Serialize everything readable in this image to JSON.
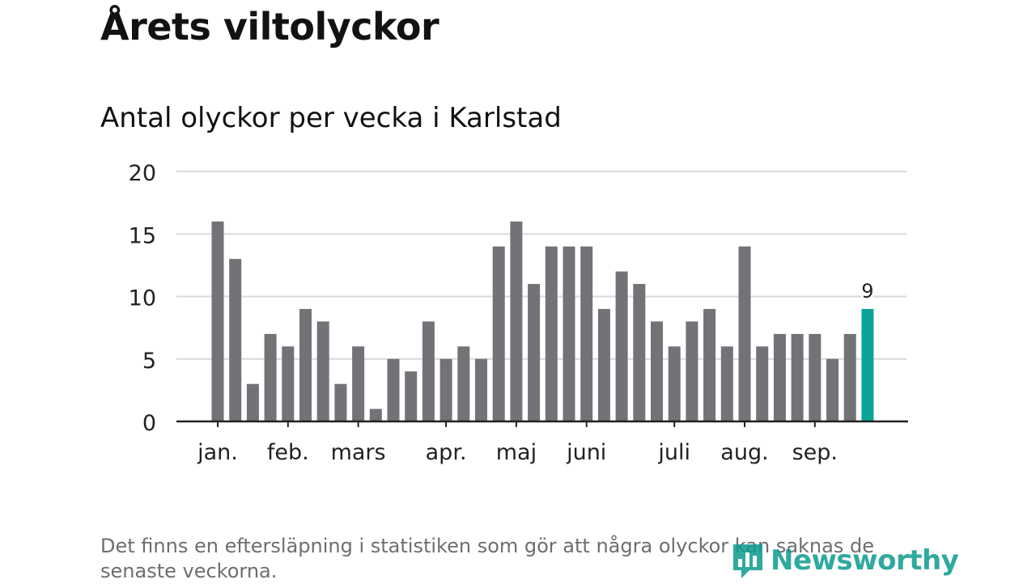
{
  "header": {
    "title": "Årets viltolyckor",
    "subtitle": "Antal olyckor per vecka i Karlstad"
  },
  "chart_data": {
    "type": "bar",
    "title": "Årets viltolyckor",
    "subtitle": "Antal olyckor per vecka i Karlstad",
    "xlabel": "",
    "ylabel": "",
    "ylim": [
      0,
      20
    ],
    "y_ticks": [
      0,
      5,
      10,
      15,
      20
    ],
    "grid": true,
    "values": [
      16,
      13,
      3,
      7,
      6,
      9,
      8,
      3,
      6,
      1,
      5,
      4,
      8,
      5,
      6,
      5,
      14,
      16,
      11,
      14,
      14,
      14,
      9,
      12,
      11,
      8,
      6,
      8,
      9,
      6,
      14,
      6,
      7,
      7,
      7,
      5,
      7,
      9
    ],
    "month_labels": [
      {
        "label": "jan.",
        "week_index": 0
      },
      {
        "label": "feb.",
        "week_index": 4
      },
      {
        "label": "mars",
        "week_index": 8
      },
      {
        "label": "apr.",
        "week_index": 13
      },
      {
        "label": "maj",
        "week_index": 17
      },
      {
        "label": "juni",
        "week_index": 21
      },
      {
        "label": "juli",
        "week_index": 26
      },
      {
        "label": "aug.",
        "week_index": 30
      },
      {
        "label": "sep.",
        "week_index": 34
      }
    ],
    "highlight_last": true,
    "last_value_label": "9",
    "colors": {
      "bar": "#737277",
      "highlight": "#0ca49a",
      "grid": "#d9d9d9",
      "axis": "#222222",
      "text": "#222222"
    }
  },
  "footer": {
    "note": "Det finns en eftersläpning i statistiken som gör att några olyckor kan saknas de senaste veckorna.",
    "brand": "Newsworthy",
    "brand_icon": "bar-chart-logo-icon"
  }
}
